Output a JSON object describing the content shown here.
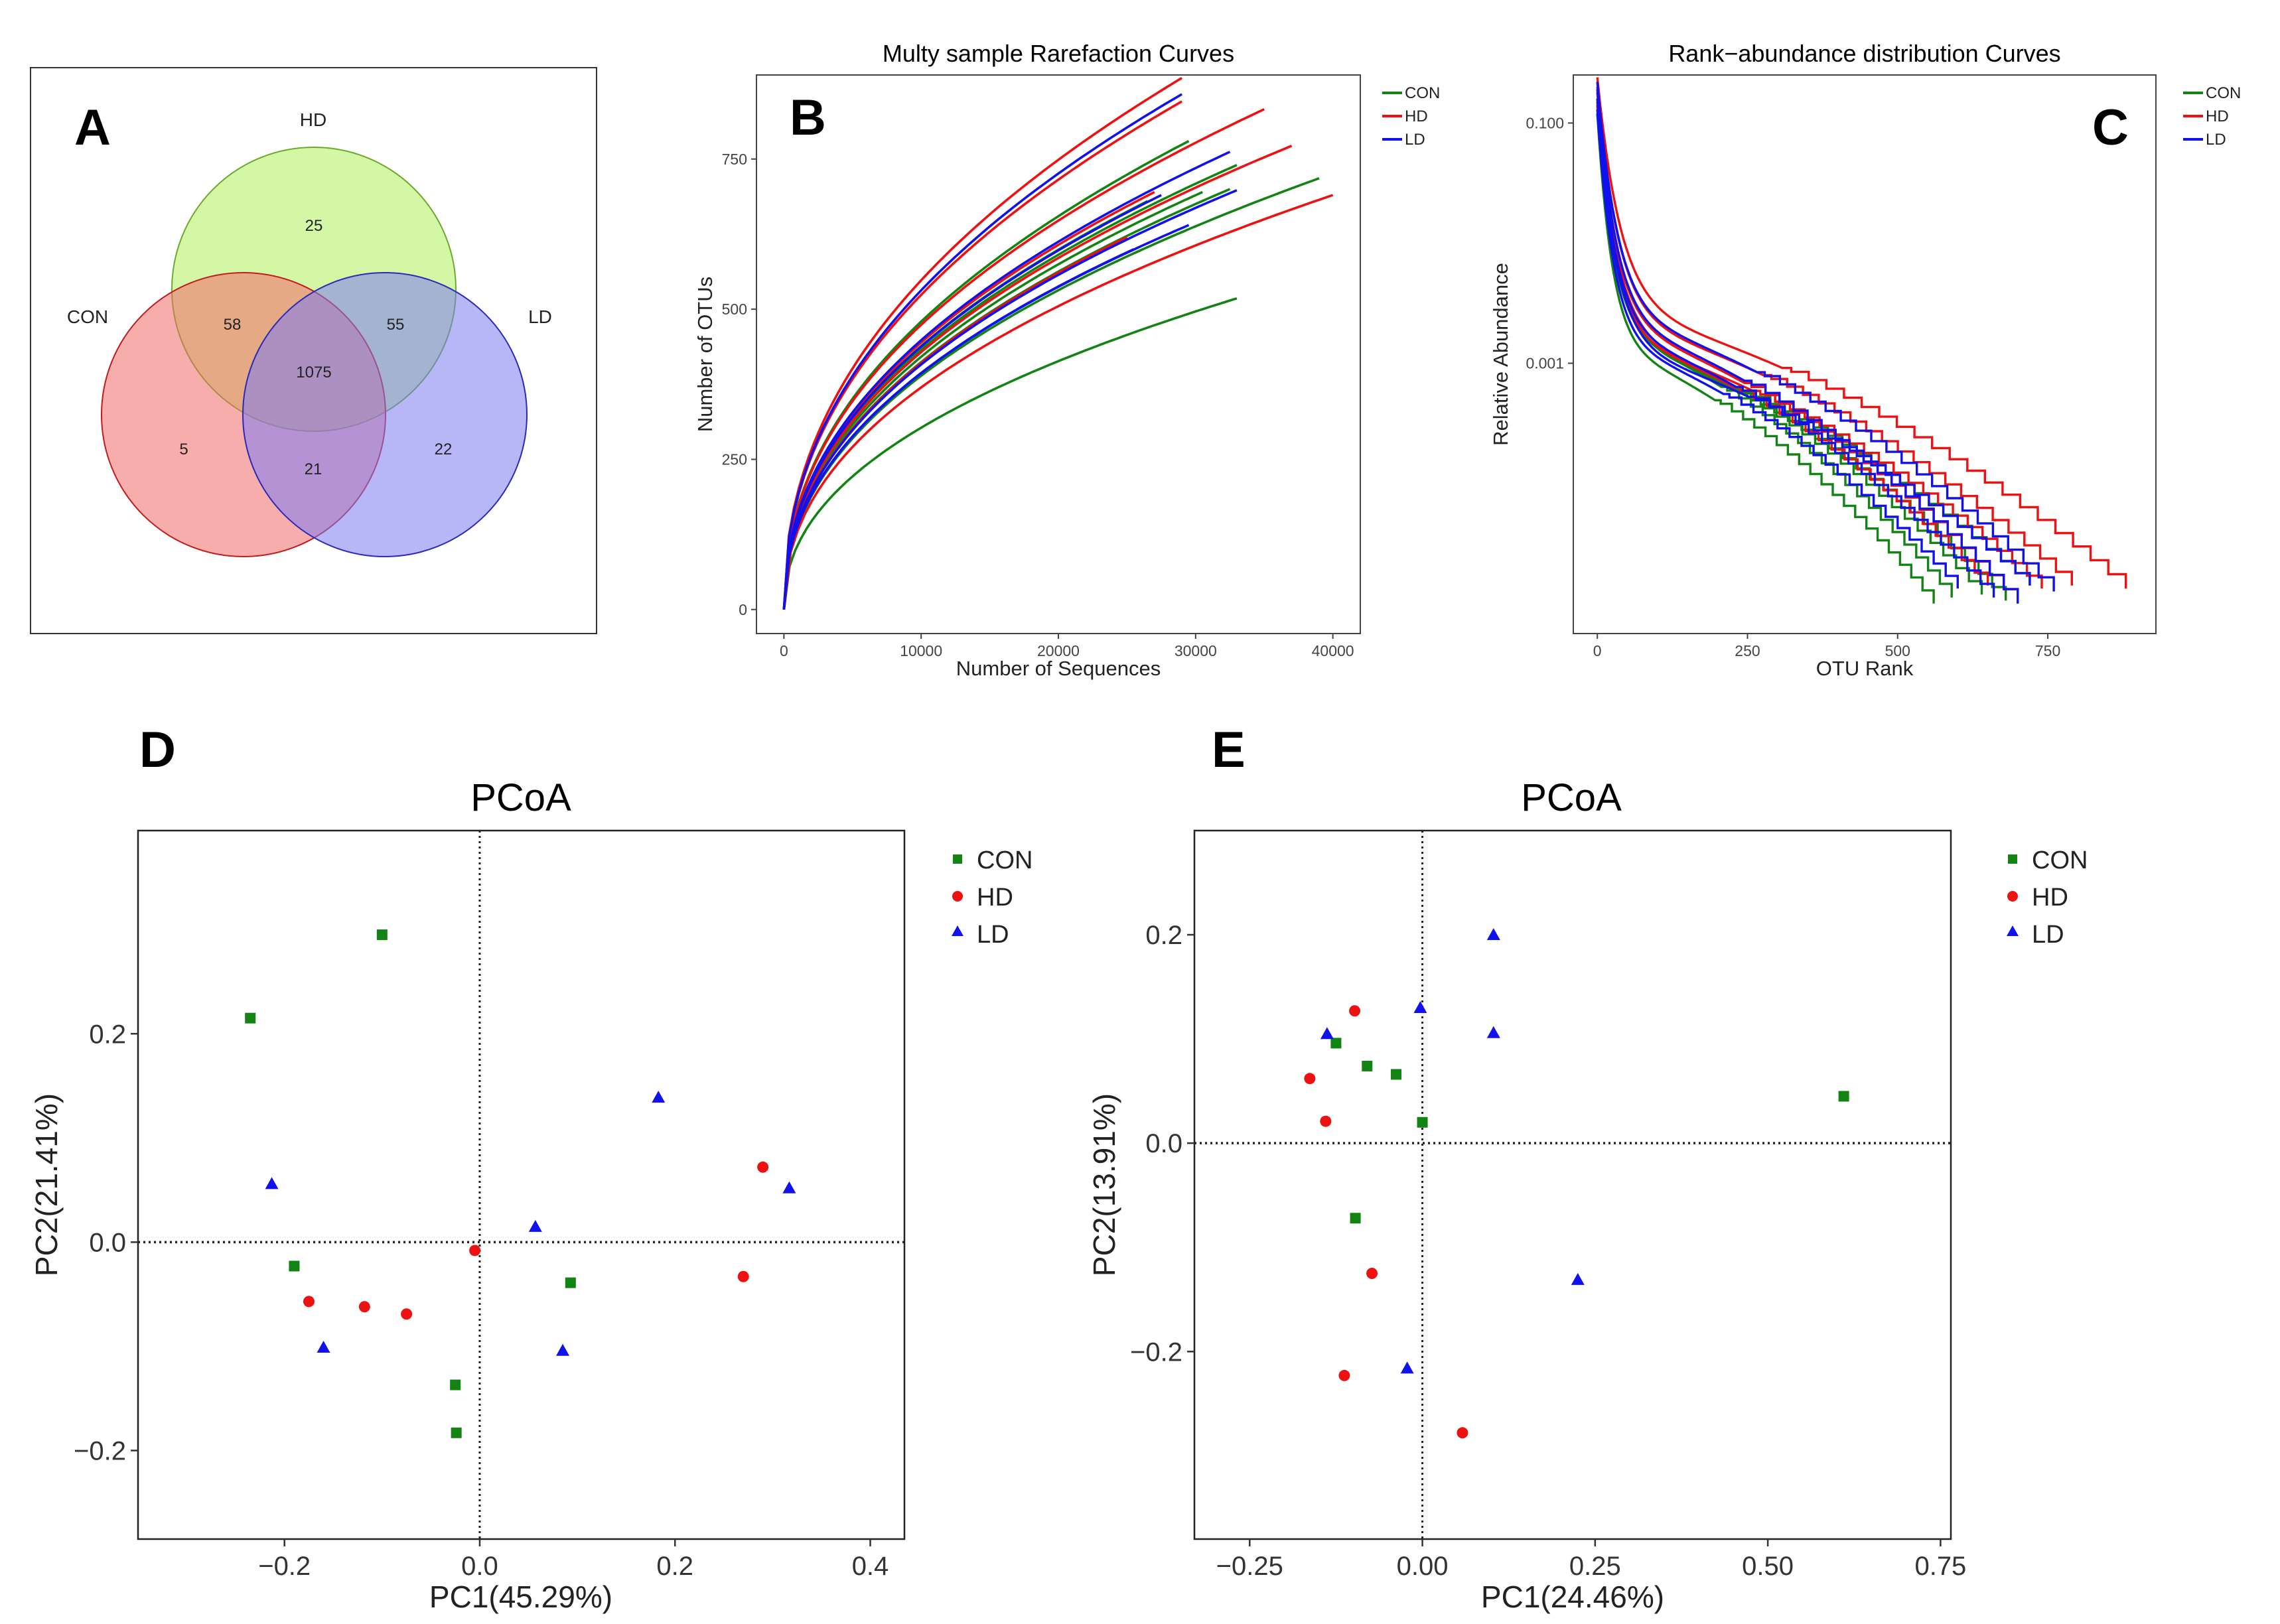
{
  "colors": {
    "CON": "#138413",
    "HD": "#ee1111",
    "LD": "#1111ee"
  },
  "panels": {
    "A": "A",
    "B": "B",
    "C": "C",
    "D": "D",
    "E": "E"
  },
  "chart_data": [
    {
      "panel": "A",
      "type": "venn",
      "sets": [
        {
          "name": "HD",
          "color": "#b7f16b"
        },
        {
          "name": "CON",
          "color": "#f26a6a"
        },
        {
          "name": "LD",
          "color": "#7b7bf2"
        }
      ],
      "regions": {
        "HD_only": "25",
        "CON_only": "5",
        "LD_only": "22",
        "CON_HD": "58",
        "HD_LD": "55",
        "CON_LD": "21",
        "all": "1075"
      }
    },
    {
      "panel": "B",
      "type": "line",
      "title": "Multy sample Rarefaction Curves",
      "xlabel": "Number of Sequences",
      "ylabel": "Number of OTUs",
      "xlim": [
        -2000,
        42000
      ],
      "ylim": [
        -40,
        890
      ],
      "xticks": [
        0,
        10000,
        20000,
        30000,
        40000
      ],
      "yticks": [
        0,
        250,
        500,
        750
      ],
      "legend": [
        "CON",
        "HD",
        "LD"
      ],
      "series": [
        {
          "name": "CON",
          "maxSeq": 33000,
          "finalOTU": 518
        },
        {
          "name": "CON",
          "maxSeq": 39000,
          "finalOTU": 718
        },
        {
          "name": "CON",
          "maxSeq": 30500,
          "finalOTU": 695
        },
        {
          "name": "CON",
          "maxSeq": 33000,
          "finalOTU": 740
        },
        {
          "name": "CON",
          "maxSeq": 29500,
          "finalOTU": 780
        },
        {
          "name": "CON",
          "maxSeq": 32500,
          "finalOTU": 700
        },
        {
          "name": "CON",
          "maxSeq": 26500,
          "finalOTU": 680
        },
        {
          "name": "HD",
          "maxSeq": 29000,
          "finalOTU": 885
        },
        {
          "name": "HD",
          "maxSeq": 35000,
          "finalOTU": 833
        },
        {
          "name": "HD",
          "maxSeq": 37000,
          "finalOTU": 772
        },
        {
          "name": "HD",
          "maxSeq": 40000,
          "finalOTU": 690
        },
        {
          "name": "HD",
          "maxSeq": 27000,
          "finalOTU": 695
        },
        {
          "name": "HD",
          "maxSeq": 25000,
          "finalOTU": 620
        },
        {
          "name": "HD",
          "maxSeq": 29000,
          "finalOTU": 846
        },
        {
          "name": "LD",
          "maxSeq": 29000,
          "finalOTU": 858
        },
        {
          "name": "LD",
          "maxSeq": 32500,
          "finalOTU": 762
        },
        {
          "name": "LD",
          "maxSeq": 33000,
          "finalOTU": 698
        },
        {
          "name": "LD",
          "maxSeq": 25500,
          "finalOTU": 600
        },
        {
          "name": "LD",
          "maxSeq": 29500,
          "finalOTU": 640
        },
        {
          "name": "LD",
          "maxSeq": 27500,
          "finalOTU": 690
        }
      ]
    },
    {
      "panel": "C",
      "type": "line",
      "title": "Rank−abundance distribution Curves",
      "xlabel": "OTU Rank",
      "ylabel": "Relative Abundance",
      "xscale": "linear",
      "yscale": "log",
      "xlim": [
        -40,
        930
      ],
      "ylim_log10": [
        -5.25,
        -0.6
      ],
      "xticks": [
        0,
        250,
        500,
        750
      ],
      "yticks": [
        {
          "value": 0.1,
          "label": "0.100"
        },
        {
          "value": 0.001,
          "label": "0.001"
        }
      ],
      "legend": [
        "CON",
        "HD",
        "LD"
      ],
      "series": [
        {
          "name": "CON",
          "maxRank": 590,
          "top": 0.16
        },
        {
          "name": "CON",
          "maxRank": 680,
          "top": 0.14
        },
        {
          "name": "CON",
          "maxRank": 560,
          "top": 0.12
        },
        {
          "name": "CON",
          "maxRank": 640,
          "top": 0.15
        },
        {
          "name": "CON",
          "maxRank": 720,
          "top": 0.13
        },
        {
          "name": "HD",
          "maxRank": 880,
          "top": 0.24
        },
        {
          "name": "HD",
          "maxRank": 790,
          "top": 0.2
        },
        {
          "name": "HD",
          "maxRank": 700,
          "top": 0.18
        },
        {
          "name": "HD",
          "maxRank": 650,
          "top": 0.15
        },
        {
          "name": "HD",
          "maxRank": 740,
          "top": 0.14
        },
        {
          "name": "LD",
          "maxRank": 760,
          "top": 0.22
        },
        {
          "name": "LD",
          "maxRank": 700,
          "top": 0.19
        },
        {
          "name": "LD",
          "maxRank": 660,
          "top": 0.16
        },
        {
          "name": "LD",
          "maxRank": 600,
          "top": 0.13
        },
        {
          "name": "LD",
          "maxRank": 720,
          "top": 0.12
        }
      ]
    },
    {
      "panel": "D",
      "type": "scatter",
      "title": "PCoA",
      "xlabel": "PC1(45.29%)",
      "ylabel": "PC2(21.41%)",
      "xlim": [
        -0.35,
        0.435
      ],
      "ylim": [
        -0.285,
        0.395
      ],
      "xticks": [
        {
          "v": -0.2,
          "l": "−0.2"
        },
        {
          "v": 0,
          "l": "0.0"
        },
        {
          "v": 0.2,
          "l": "0.2"
        },
        {
          "v": 0.4,
          "l": "0.4"
        }
      ],
      "yticks": [
        {
          "v": -0.2,
          "l": "−0.2"
        },
        {
          "v": 0,
          "l": "0.0"
        },
        {
          "v": 0.2,
          "l": "0.2"
        }
      ],
      "legend": [
        "CON",
        "HD",
        "LD"
      ],
      "points": [
        {
          "group": "CON",
          "x": -0.1,
          "y": 0.295
        },
        {
          "group": "CON",
          "x": -0.235,
          "y": 0.215
        },
        {
          "group": "CON",
          "x": -0.19,
          "y": -0.023
        },
        {
          "group": "CON",
          "x": -0.025,
          "y": -0.137
        },
        {
          "group": "CON",
          "x": -0.024,
          "y": -0.183
        },
        {
          "group": "CON",
          "x": 0.093,
          "y": -0.039
        },
        {
          "group": "HD",
          "x": -0.175,
          "y": -0.057
        },
        {
          "group": "HD",
          "x": -0.118,
          "y": -0.062
        },
        {
          "group": "HD",
          "x": -0.075,
          "y": -0.069
        },
        {
          "group": "HD",
          "x": -0.005,
          "y": -0.008
        },
        {
          "group": "HD",
          "x": 0.27,
          "y": -0.033
        },
        {
          "group": "HD",
          "x": 0.29,
          "y": 0.072
        },
        {
          "group": "LD",
          "x": -0.213,
          "y": 0.056
        },
        {
          "group": "LD",
          "x": -0.16,
          "y": -0.101
        },
        {
          "group": "LD",
          "x": 0.057,
          "y": 0.015
        },
        {
          "group": "LD",
          "x": 0.085,
          "y": -0.104
        },
        {
          "group": "LD",
          "x": 0.183,
          "y": 0.139
        },
        {
          "group": "LD",
          "x": 0.317,
          "y": 0.052
        }
      ]
    },
    {
      "panel": "E",
      "type": "scatter",
      "title": "PCoA",
      "xlabel": "PC1(24.46%)",
      "ylabel": "PC2(13.91%)",
      "xlim": [
        -0.33,
        0.765
      ],
      "ylim": [
        -0.38,
        0.3
      ],
      "xticks": [
        {
          "v": -0.25,
          "l": "−0.25"
        },
        {
          "v": 0,
          "l": "0.00"
        },
        {
          "v": 0.25,
          "l": "0.25"
        },
        {
          "v": 0.5,
          "l": "0.50"
        },
        {
          "v": 0.75,
          "l": "0.75"
        }
      ],
      "yticks": [
        {
          "v": -0.2,
          "l": "−0.2"
        },
        {
          "v": 0,
          "l": "0.0"
        },
        {
          "v": 0.2,
          "l": "0.2"
        }
      ],
      "legend": [
        "CON",
        "HD",
        "LD"
      ],
      "points": [
        {
          "group": "CON",
          "x": -0.125,
          "y": 0.096
        },
        {
          "group": "CON",
          "x": -0.08,
          "y": 0.074
        },
        {
          "group": "CON",
          "x": -0.038,
          "y": 0.066
        },
        {
          "group": "CON",
          "x": 0.0,
          "y": 0.02
        },
        {
          "group": "CON",
          "x": -0.097,
          "y": -0.072
        },
        {
          "group": "CON",
          "x": 0.61,
          "y": 0.045
        },
        {
          "group": "HD",
          "x": -0.098,
          "y": 0.127
        },
        {
          "group": "HD",
          "x": -0.163,
          "y": 0.062
        },
        {
          "group": "HD",
          "x": -0.14,
          "y": 0.021
        },
        {
          "group": "HD",
          "x": -0.073,
          "y": -0.125
        },
        {
          "group": "HD",
          "x": -0.113,
          "y": -0.223
        },
        {
          "group": "HD",
          "x": 0.058,
          "y": -0.278
        },
        {
          "group": "LD",
          "x": -0.138,
          "y": 0.105
        },
        {
          "group": "LD",
          "x": -0.003,
          "y": 0.13
        },
        {
          "group": "LD",
          "x": 0.103,
          "y": 0.2
        },
        {
          "group": "LD",
          "x": 0.103,
          "y": 0.106
        },
        {
          "group": "LD",
          "x": 0.225,
          "y": -0.131
        },
        {
          "group": "LD",
          "x": -0.022,
          "y": -0.216
        }
      ]
    }
  ]
}
